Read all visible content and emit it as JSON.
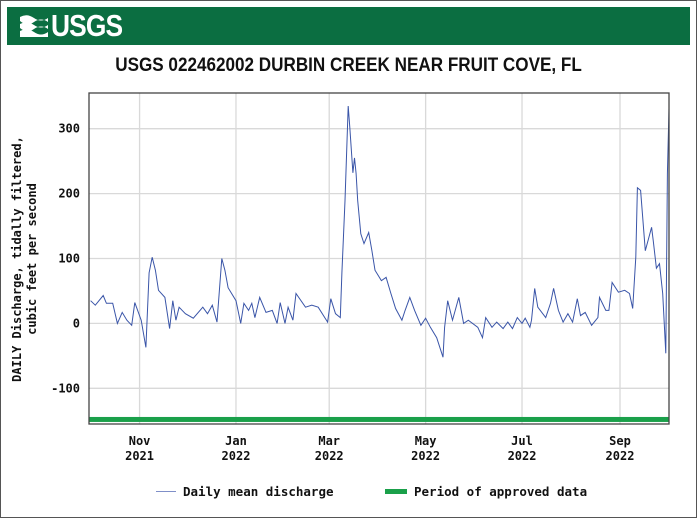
{
  "header": {
    "logo_text": "USGS"
  },
  "colors": {
    "header_bg": "#0b6e41",
    "series_line": "#3a55a8",
    "approved_bar": "#1aa04a",
    "grid": "#d9d9d9"
  },
  "chart_data": {
    "type": "line",
    "title": "USGS 022462002 DURBIN CREEK NEAR FRUIT COVE, FL",
    "ylabel_line1": "DAILY Discharge, tidally filtered,",
    "ylabel_line2": "cubic feet per second",
    "xlabel": "",
    "xlim": [
      "2021-09-30",
      "2022-10-02"
    ],
    "ylim": [
      -155,
      355
    ],
    "yticks": [
      -100,
      0,
      100,
      200,
      300
    ],
    "xticks": [
      {
        "date": "2021-11-01",
        "month": "Nov",
        "year": "2021"
      },
      {
        "date": "2022-01-01",
        "month": "Jan",
        "year": "2022"
      },
      {
        "date": "2022-03-01",
        "month": "Mar",
        "year": "2022"
      },
      {
        "date": "2022-05-01",
        "month": "May",
        "year": "2022"
      },
      {
        "date": "2022-07-01",
        "month": "Jul",
        "year": "2022"
      },
      {
        "date": "2022-09-01",
        "month": "Sep",
        "year": "2022"
      }
    ],
    "grid": true,
    "legend_position": "bottom",
    "series": [
      {
        "name": "Daily mean discharge",
        "points": [
          [
            "2021-10-01",
            35
          ],
          [
            "2021-10-04",
            28
          ],
          [
            "2021-10-09",
            43
          ],
          [
            "2021-10-11",
            31
          ],
          [
            "2021-10-15",
            31
          ],
          [
            "2021-10-18",
            0
          ],
          [
            "2021-10-21",
            17
          ],
          [
            "2021-10-24",
            5
          ],
          [
            "2021-10-27",
            -3
          ],
          [
            "2021-10-29",
            32
          ],
          [
            "2021-11-02",
            5
          ],
          [
            "2021-11-05",
            -37
          ],
          [
            "2021-11-07",
            78
          ],
          [
            "2021-11-09",
            102
          ],
          [
            "2021-11-11",
            82
          ],
          [
            "2021-11-13",
            51
          ],
          [
            "2021-11-17",
            40
          ],
          [
            "2021-11-20",
            -8
          ],
          [
            "2021-11-22",
            35
          ],
          [
            "2021-11-24",
            5
          ],
          [
            "2021-11-26",
            25
          ],
          [
            "2021-11-30",
            15
          ],
          [
            "2021-12-05",
            8
          ],
          [
            "2021-12-11",
            25
          ],
          [
            "2021-12-14",
            15
          ],
          [
            "2021-12-17",
            28
          ],
          [
            "2021-12-20",
            2
          ],
          [
            "2021-12-23",
            100
          ],
          [
            "2021-12-25",
            82
          ],
          [
            "2021-12-27",
            55
          ],
          [
            "2022-01-01",
            35
          ],
          [
            "2022-01-04",
            0
          ],
          [
            "2022-01-06",
            31
          ],
          [
            "2022-01-09",
            20
          ],
          [
            "2022-01-11",
            31
          ],
          [
            "2022-01-13",
            9
          ],
          [
            "2022-01-16",
            40
          ],
          [
            "2022-01-20",
            17
          ],
          [
            "2022-01-24",
            20
          ],
          [
            "2022-01-27",
            0
          ],
          [
            "2022-01-29",
            32
          ],
          [
            "2022-02-01",
            0
          ],
          [
            "2022-02-03",
            25
          ],
          [
            "2022-02-06",
            5
          ],
          [
            "2022-02-08",
            46
          ],
          [
            "2022-02-14",
            25
          ],
          [
            "2022-02-18",
            28
          ],
          [
            "2022-02-22",
            25
          ],
          [
            "2022-02-28",
            2
          ],
          [
            "2022-03-02",
            38
          ],
          [
            "2022-03-05",
            15
          ],
          [
            "2022-03-08",
            9
          ],
          [
            "2022-03-09",
            78
          ],
          [
            "2022-03-11",
            189
          ],
          [
            "2022-03-13",
            335
          ],
          [
            "2022-03-14",
            302
          ],
          [
            "2022-03-16",
            232
          ],
          [
            "2022-03-17",
            255
          ],
          [
            "2022-03-18",
            231
          ],
          [
            "2022-03-19",
            189
          ],
          [
            "2022-03-21",
            138
          ],
          [
            "2022-03-23",
            123
          ],
          [
            "2022-03-26",
            140
          ],
          [
            "2022-03-28",
            112
          ],
          [
            "2022-03-30",
            82
          ],
          [
            "2022-04-03",
            66
          ],
          [
            "2022-04-06",
            71
          ],
          [
            "2022-04-09",
            46
          ],
          [
            "2022-04-12",
            23
          ],
          [
            "2022-04-16",
            5
          ],
          [
            "2022-04-18",
            20
          ],
          [
            "2022-04-21",
            40
          ],
          [
            "2022-04-24",
            20
          ],
          [
            "2022-04-28",
            -3
          ],
          [
            "2022-05-01",
            8
          ],
          [
            "2022-05-04",
            -6
          ],
          [
            "2022-05-08",
            -22
          ],
          [
            "2022-05-12",
            -52
          ],
          [
            "2022-05-13",
            -6
          ],
          [
            "2022-05-15",
            35
          ],
          [
            "2022-05-18",
            5
          ],
          [
            "2022-05-22",
            40
          ],
          [
            "2022-05-25",
            0
          ],
          [
            "2022-05-28",
            5
          ],
          [
            "2022-06-03",
            -6
          ],
          [
            "2022-06-06",
            -22
          ],
          [
            "2022-06-08",
            9
          ],
          [
            "2022-06-12",
            -6
          ],
          [
            "2022-06-15",
            2
          ],
          [
            "2022-06-19",
            -8
          ],
          [
            "2022-06-22",
            2
          ],
          [
            "2022-06-25",
            -8
          ],
          [
            "2022-06-28",
            9
          ],
          [
            "2022-07-01",
            0
          ],
          [
            "2022-07-03",
            8
          ],
          [
            "2022-07-06",
            -6
          ],
          [
            "2022-07-07",
            5
          ],
          [
            "2022-07-09",
            54
          ],
          [
            "2022-07-11",
            25
          ],
          [
            "2022-07-16",
            9
          ],
          [
            "2022-07-19",
            31
          ],
          [
            "2022-07-21",
            54
          ],
          [
            "2022-07-24",
            20
          ],
          [
            "2022-07-27",
            2
          ],
          [
            "2022-07-30",
            15
          ],
          [
            "2022-08-02",
            2
          ],
          [
            "2022-08-05",
            38
          ],
          [
            "2022-08-07",
            12
          ],
          [
            "2022-08-10",
            17
          ],
          [
            "2022-08-14",
            -3
          ],
          [
            "2022-08-18",
            9
          ],
          [
            "2022-08-19",
            40
          ],
          [
            "2022-08-23",
            20
          ],
          [
            "2022-08-25",
            20
          ],
          [
            "2022-08-27",
            63
          ],
          [
            "2022-08-31",
            48
          ],
          [
            "2022-09-04",
            51
          ],
          [
            "2022-09-07",
            46
          ],
          [
            "2022-09-09",
            23
          ],
          [
            "2022-09-11",
            102
          ],
          [
            "2022-09-12",
            209
          ],
          [
            "2022-09-14",
            205
          ],
          [
            "2022-09-17",
            112
          ],
          [
            "2022-09-21",
            148
          ],
          [
            "2022-09-22",
            128
          ],
          [
            "2022-09-24",
            85
          ],
          [
            "2022-09-26",
            92
          ],
          [
            "2022-09-28",
            46
          ],
          [
            "2022-09-30",
            -46
          ],
          [
            "2022-10-01",
            231
          ],
          [
            "2022-10-02",
            331
          ]
        ]
      },
      {
        "name": "Period of approved data",
        "start": "2021-09-30",
        "end": "2022-10-02",
        "level": -148
      }
    ]
  }
}
